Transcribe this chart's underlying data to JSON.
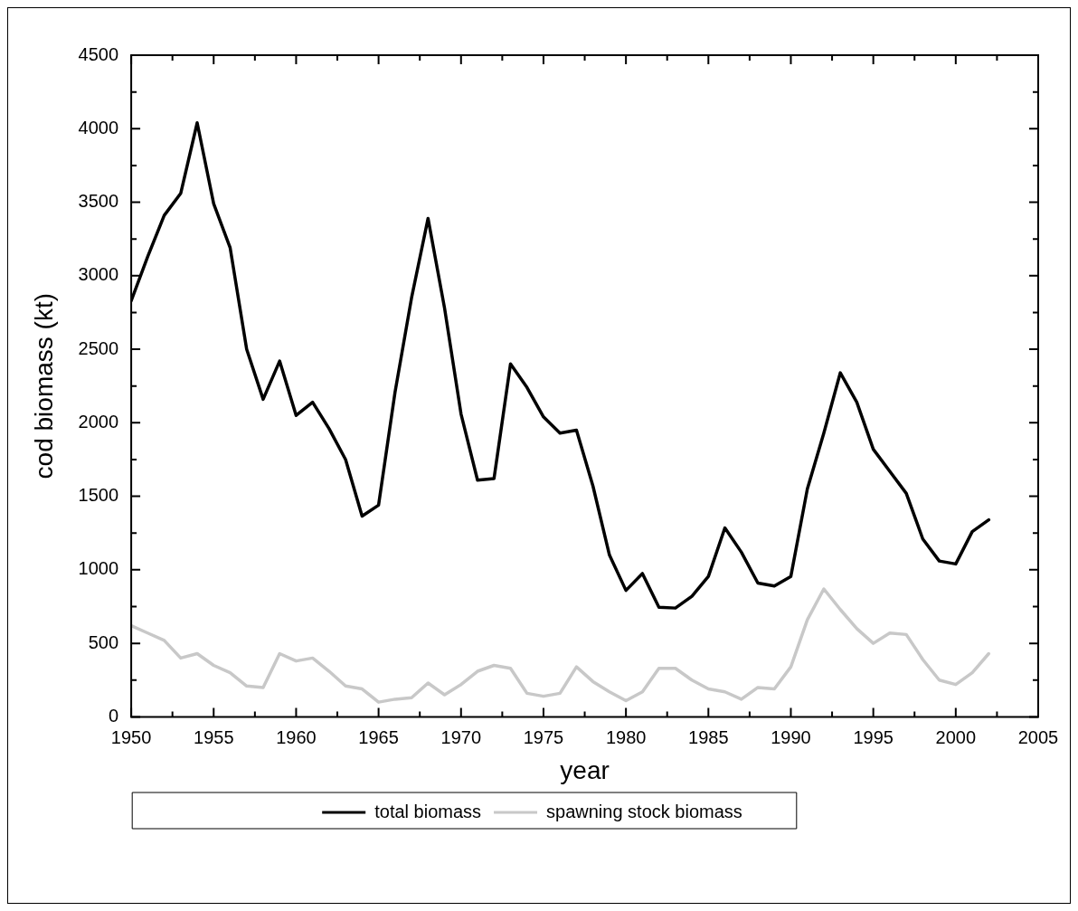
{
  "chart_data": {
    "type": "line",
    "xlabel": "year",
    "ylabel": "cod biomass (kt)",
    "x": [
      1950,
      1951,
      1952,
      1953,
      1954,
      1955,
      1956,
      1957,
      1958,
      1959,
      1960,
      1961,
      1962,
      1963,
      1964,
      1965,
      1966,
      1967,
      1968,
      1969,
      1970,
      1971,
      1972,
      1973,
      1974,
      1975,
      1976,
      1977,
      1978,
      1979,
      1980,
      1981,
      1982,
      1983,
      1984,
      1985,
      1986,
      1987,
      1988,
      1989,
      1990,
      1991,
      1992,
      1993,
      1994,
      1995,
      1996,
      1997,
      1998,
      1999,
      2000,
      2001,
      2002
    ],
    "series": [
      {
        "name": "total biomass",
        "color": "#000000",
        "values": [
          2830,
          3130,
          3410,
          3560,
          4040,
          3490,
          3190,
          2500,
          2160,
          2420,
          2050,
          2140,
          1960,
          1750,
          1365,
          1440,
          2210,
          2850,
          3390,
          2780,
          2060,
          1610,
          1620,
          2400,
          2240,
          2040,
          1930,
          1950,
          1570,
          1100,
          860,
          975,
          745,
          740,
          820,
          955,
          1285,
          1120,
          910,
          890,
          955,
          1550,
          1930,
          2340,
          2140,
          1820,
          1670,
          1520,
          1210,
          1060,
          1040,
          1260,
          1340
        ]
      },
      {
        "name": "spawning stock biomass",
        "color": "#c8c8c8",
        "values": [
          620,
          570,
          520,
          400,
          430,
          350,
          300,
          210,
          200,
          430,
          380,
          400,
          310,
          210,
          190,
          100,
          120,
          130,
          230,
          150,
          220,
          310,
          350,
          330,
          160,
          140,
          160,
          340,
          240,
          170,
          110,
          170,
          330,
          330,
          250,
          190,
          170,
          120,
          200,
          190,
          340,
          660,
          870,
          730,
          600,
          500,
          570,
          560,
          390,
          250,
          220,
          300,
          430
        ]
      }
    ],
    "xlim": [
      1950,
      2005
    ],
    "xticks": [
      1950,
      1955,
      1960,
      1965,
      1970,
      1975,
      1980,
      1985,
      1990,
      1995,
      2000,
      2005
    ],
    "ylim": [
      0,
      4500
    ],
    "yticks": [
      0,
      500,
      1000,
      1500,
      2000,
      2500,
      3000,
      3500,
      4000,
      4500
    ],
    "grid": false,
    "legend": "bottom",
    "marker": "none",
    "line_style": "solid"
  }
}
